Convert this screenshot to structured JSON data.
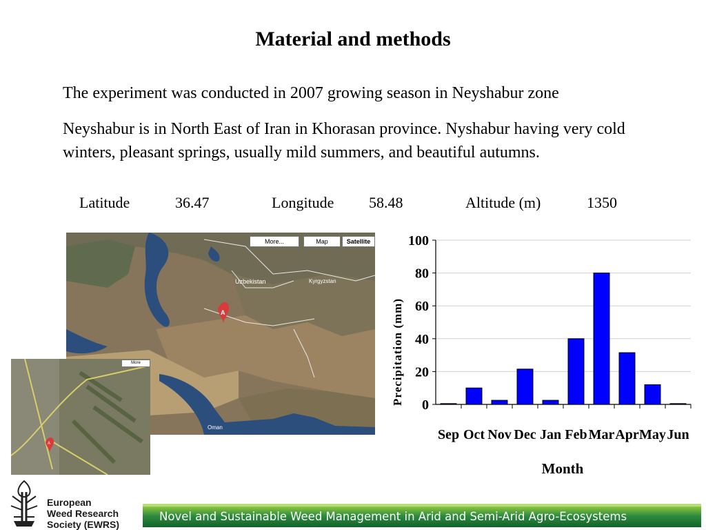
{
  "slide": {
    "title": "Material and methods",
    "paragraph1": "The experiment was conducted in 2007 growing season in Neyshabur zone",
    "paragraph2": "Neyshabur is in North East of Iran in Khorasan province. Nyshabur having very cold winters, pleasant springs, usually mild summers, and beautiful autumns."
  },
  "stats": {
    "latitude_label": "Latitude",
    "latitude_value": "36.47",
    "longitude_label": "Longitude",
    "longitude_value": "58.48",
    "altitude_label": "Altitude (m)",
    "altitude_value": "1350"
  },
  "map": {
    "more_label": "More...",
    "map_label": "Map",
    "satellite_label": "Satellite",
    "marker_label": "A",
    "country_labels": [
      "Uzbekistan",
      "Kyrgyzstan",
      "Oman"
    ],
    "small_more_label": "More",
    "small_marker_label": "A"
  },
  "chart_data": {
    "type": "bar",
    "categories": [
      "Sep",
      "Oct",
      "Nov",
      "Dec",
      "Jan",
      "Feb",
      "Mar",
      "Apr",
      "May",
      "Jun"
    ],
    "values": [
      0.5,
      10,
      2.5,
      21.5,
      2.5,
      40,
      80,
      31.5,
      12,
      0.5
    ],
    "title": "",
    "xlabel": "Month",
    "ylabel": "Precipitation (mm)",
    "ylim": [
      0,
      100
    ],
    "yticks": [
      0,
      20,
      40,
      60,
      80,
      100
    ],
    "bar_color": "#0000ff",
    "grid": true
  },
  "footer": {
    "org_line1": "European",
    "org_line2": "Weed Research",
    "org_line3": "Society (EWRS)",
    "banner_text": "Novel and Sustainable Weed Management in Arid  and Semi-Arid Agro-Ecosystems",
    "banner_color": "#2e8b3e"
  }
}
